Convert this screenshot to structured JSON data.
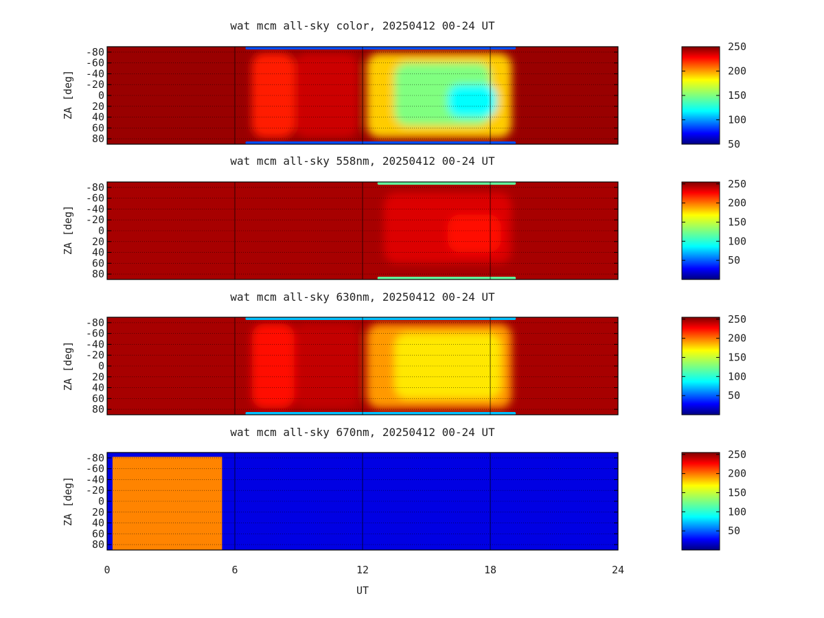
{
  "chart_data": {
    "type": "heatmap",
    "xlabel": "UT",
    "x_ticks": [
      0,
      6,
      12,
      18,
      24
    ],
    "xlim": [
      0,
      24
    ],
    "panels": [
      {
        "title": "wat mcm all-sky color, 20250412 00-24 UT",
        "ylabel": "ZA [deg]",
        "y_ticks": [
          -80,
          -60,
          -40,
          -20,
          0,
          20,
          40,
          60,
          80
        ],
        "colorbar_ticks": [
          250,
          200,
          150,
          100,
          50
        ],
        "colorbar_range": [
          50,
          250
        ],
        "background_value": 245,
        "regions": [
          {
            "ut": [
              6.8,
              8.8
            ],
            "za": [
              -78,
              78
            ],
            "value": 220
          },
          {
            "ut": [
              8.8,
              11.8
            ],
            "za": [
              -78,
              78
            ],
            "value": 235
          },
          {
            "ut": [
              12.2,
              19.0
            ],
            "za": [
              -78,
              78
            ],
            "value": 185
          },
          {
            "ut": [
              13.5,
              18.0
            ],
            "za": [
              -60,
              55
            ],
            "value": 150
          },
          {
            "ut": [
              16.0,
              18.3
            ],
            "za": [
              -20,
              40
            ],
            "value": 125
          }
        ],
        "edge_value": 90
      },
      {
        "title": "wat mcm all-sky 558nm, 20250412 00-24 UT",
        "ylabel": "ZA [deg]",
        "y_ticks": [
          -80,
          -60,
          -40,
          -20,
          0,
          20,
          40,
          60,
          80
        ],
        "colorbar_ticks": [
          250,
          200,
          150,
          100,
          50
        ],
        "colorbar_range": [
          0,
          255
        ],
        "background_value": 245,
        "regions": [
          {
            "ut": [
              13.0,
              19.0
            ],
            "za": [
              -70,
              60
            ],
            "value": 232
          },
          {
            "ut": [
              16.0,
              18.5
            ],
            "za": [
              -30,
              40
            ],
            "value": 220
          }
        ],
        "edge_value": 120
      },
      {
        "title": "wat mcm all-sky 630nm, 20250412 00-24 UT",
        "ylabel": "ZA [deg]",
        "y_ticks": [
          -80,
          -60,
          -40,
          -20,
          0,
          20,
          40,
          60,
          80
        ],
        "colorbar_ticks": [
          250,
          200,
          150,
          100,
          50
        ],
        "colorbar_range": [
          0,
          255
        ],
        "background_value": 245,
        "regions": [
          {
            "ut": [
              6.8,
              8.8
            ],
            "za": [
              -78,
              78
            ],
            "value": 220
          },
          {
            "ut": [
              8.8,
              11.8
            ],
            "za": [
              -78,
              78
            ],
            "value": 238
          },
          {
            "ut": [
              12.2,
              19.0
            ],
            "za": [
              -78,
              78
            ],
            "value": 185
          },
          {
            "ut": [
              13.5,
              18.5
            ],
            "za": [
              -60,
              60
            ],
            "value": 165
          }
        ],
        "edge_value": 80
      },
      {
        "title": "wat mcm all-sky 670nm, 20250412 00-24 UT",
        "ylabel": "ZA [deg]",
        "y_ticks": [
          -80,
          -60,
          -40,
          -20,
          0,
          20,
          40,
          60,
          80
        ],
        "colorbar_ticks": [
          250,
          200,
          150,
          100,
          50
        ],
        "colorbar_range": [
          0,
          255
        ],
        "background_value": 25,
        "regions": [
          {
            "ut": [
              0.25,
              5.4
            ],
            "za": [
              -82,
              90
            ],
            "value": 190
          }
        ],
        "edge_value": 25
      }
    ]
  }
}
